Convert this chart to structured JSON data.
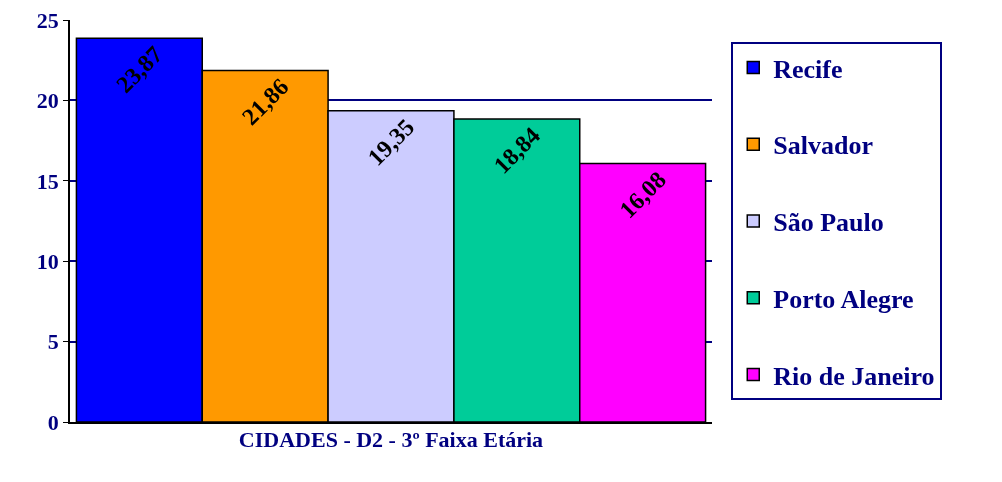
{
  "chart_data": {
    "type": "bar",
    "xlabel": "CIDADES - D2 - 3º Faixa Etária",
    "categories": [
      null
    ],
    "series": [
      {
        "name": "Recife",
        "color": "#0000ff",
        "values": [
          23.87
        ],
        "value_labels": [
          "23,87"
        ]
      },
      {
        "name": "Salvador",
        "color": "#ff9900",
        "values": [
          21.86
        ],
        "value_labels": [
          "21,86"
        ]
      },
      {
        "name": "São Paulo",
        "color": "#ccccff",
        "values": [
          19.35
        ],
        "value_labels": [
          "19,35"
        ]
      },
      {
        "name": "Porto Alegre",
        "color": "#00cc99",
        "values": [
          18.84
        ],
        "value_labels": [
          "18,84"
        ]
      },
      {
        "name": "Rio de Janeiro",
        "color": "#ff00ff",
        "values": [
          16.08
        ],
        "value_labels": [
          "16,08"
        ]
      }
    ],
    "ylim": [
      0,
      25
    ],
    "yticks": [
      0,
      5,
      10,
      15,
      20,
      25
    ],
    "grid": "y",
    "legend": "right"
  }
}
